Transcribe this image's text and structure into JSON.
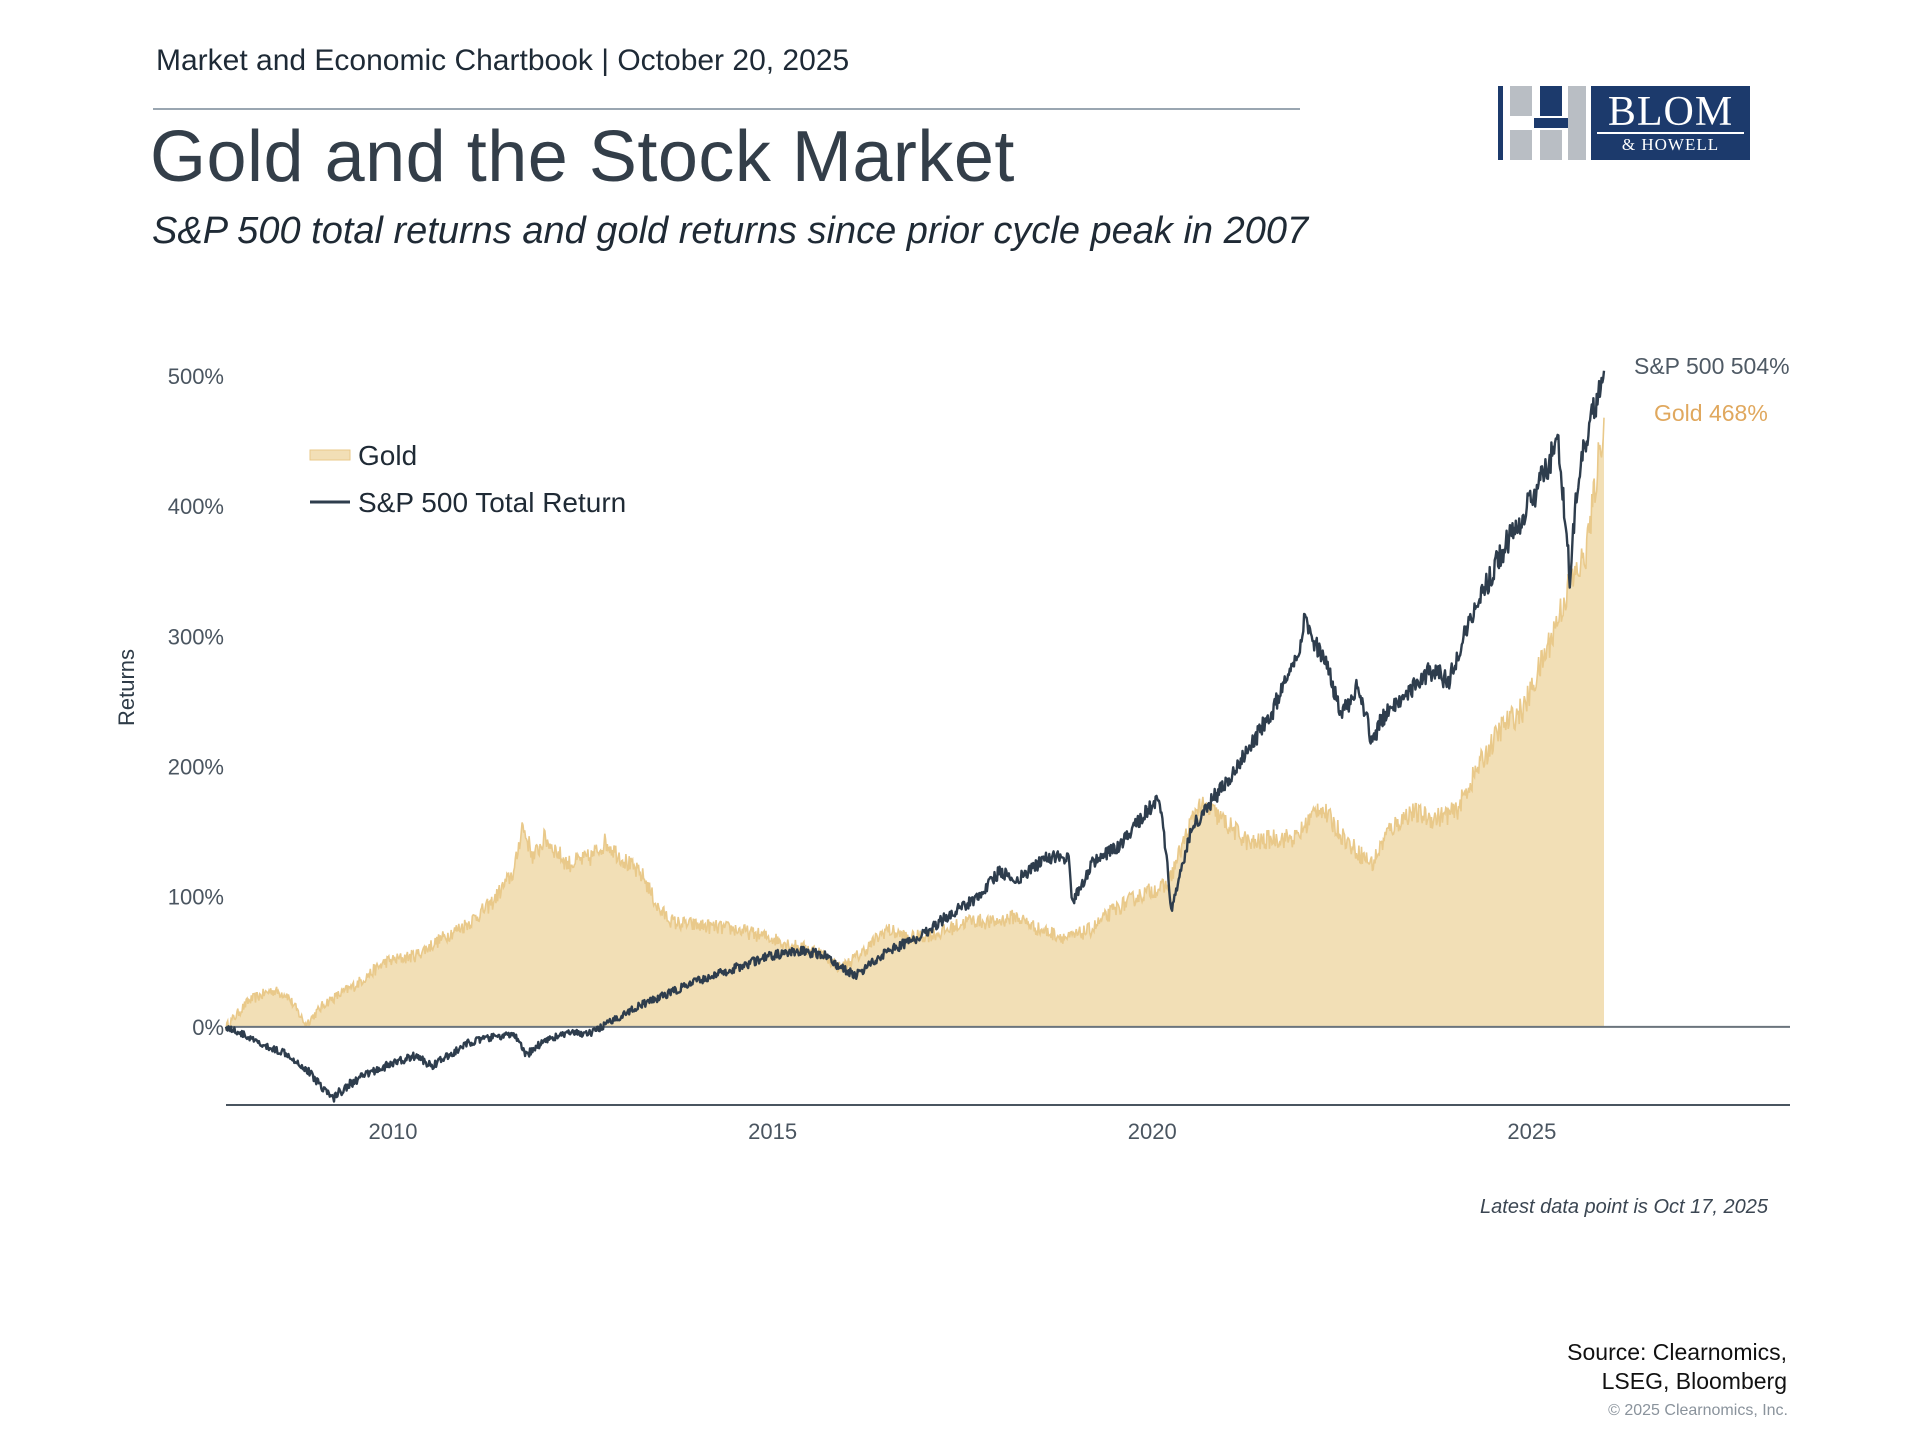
{
  "header": {
    "chartbook": "Market and Economic Chartbook | October 20, 2025",
    "title": "Gold and the Stock Market",
    "subtitle": "S&P 500 total returns and gold returns since prior cycle peak in 2007"
  },
  "logo": {
    "name": "BLOM",
    "sub": "& HOWELL",
    "color": "#1c3a6c"
  },
  "chart_data": {
    "type": "area",
    "ylabel": "Returns",
    "xlabel": "",
    "ylim": [
      -60,
      520
    ],
    "xlim": [
      2007.8,
      2028.4
    ],
    "y_ticks": [
      0,
      100,
      200,
      300,
      400,
      500
    ],
    "y_tick_labels": [
      "0%",
      "100%",
      "200%",
      "300%",
      "400%",
      "500%"
    ],
    "x_ticks": [
      2010,
      2015,
      2020,
      2025
    ],
    "x_tick_labels": [
      "2010",
      "2015",
      "2020",
      "2025"
    ],
    "legend_placement": "top-left",
    "grid": false,
    "series": [
      {
        "name": "Gold",
        "style": "area",
        "color": "#f2dfb6",
        "stroke": "#e9c98a",
        "end_label": "Gold 468%",
        "end_label_color": "#e0a85e",
        "points": [
          [
            2007.8,
            0
          ],
          [
            2008.1,
            20
          ],
          [
            2008.4,
            28
          ],
          [
            2008.6,
            25
          ],
          [
            2008.85,
            2
          ],
          [
            2009.1,
            18
          ],
          [
            2009.5,
            32
          ],
          [
            2009.9,
            50
          ],
          [
            2010.3,
            55
          ],
          [
            2010.7,
            70
          ],
          [
            2011.0,
            80
          ],
          [
            2011.3,
            95
          ],
          [
            2011.6,
            120
          ],
          [
            2011.7,
            155
          ],
          [
            2011.85,
            130
          ],
          [
            2012.0,
            145
          ],
          [
            2012.3,
            125
          ],
          [
            2012.6,
            130
          ],
          [
            2012.8,
            142
          ],
          [
            2013.1,
            125
          ],
          [
            2013.3,
            115
          ],
          [
            2013.5,
            90
          ],
          [
            2013.7,
            80
          ],
          [
            2014.0,
            78
          ],
          [
            2014.5,
            75
          ],
          [
            2015.0,
            68
          ],
          [
            2015.3,
            62
          ],
          [
            2015.6,
            58
          ],
          [
            2015.9,
            45
          ],
          [
            2016.2,
            58
          ],
          [
            2016.5,
            75
          ],
          [
            2016.8,
            68
          ],
          [
            2017.2,
            72
          ],
          [
            2017.6,
            82
          ],
          [
            2017.9,
            80
          ],
          [
            2018.2,
            85
          ],
          [
            2018.5,
            75
          ],
          [
            2018.9,
            68
          ],
          [
            2019.2,
            75
          ],
          [
            2019.5,
            90
          ],
          [
            2019.8,
            100
          ],
          [
            2020.0,
            105
          ],
          [
            2020.2,
            108
          ],
          [
            2020.4,
            140
          ],
          [
            2020.6,
            170
          ],
          [
            2020.8,
            165
          ],
          [
            2021.0,
            155
          ],
          [
            2021.3,
            140
          ],
          [
            2021.6,
            145
          ],
          [
            2021.9,
            145
          ],
          [
            2022.2,
            170
          ],
          [
            2022.4,
            155
          ],
          [
            2022.6,
            140
          ],
          [
            2022.9,
            125
          ],
          [
            2023.1,
            150
          ],
          [
            2023.4,
            165
          ],
          [
            2023.7,
            160
          ],
          [
            2024.0,
            165
          ],
          [
            2024.3,
            200
          ],
          [
            2024.6,
            230
          ],
          [
            2024.9,
            245
          ],
          [
            2025.2,
            290
          ],
          [
            2025.5,
            340
          ],
          [
            2025.7,
            360
          ],
          [
            2025.8,
            400
          ],
          [
            2025.95,
            468
          ]
        ]
      },
      {
        "name": "S&P 500 Total Return",
        "style": "line",
        "color": "#2e3d4d",
        "end_label": "S&P 500 504%",
        "end_label_color": "#4f5a65",
        "points": [
          [
            2007.8,
            0
          ],
          [
            2008.0,
            -5
          ],
          [
            2008.3,
            -15
          ],
          [
            2008.6,
            -20
          ],
          [
            2008.9,
            -35
          ],
          [
            2009.1,
            -48
          ],
          [
            2009.2,
            -55
          ],
          [
            2009.4,
            -45
          ],
          [
            2009.7,
            -35
          ],
          [
            2010.0,
            -28
          ],
          [
            2010.3,
            -22
          ],
          [
            2010.5,
            -30
          ],
          [
            2010.8,
            -20
          ],
          [
            2011.0,
            -12
          ],
          [
            2011.3,
            -8
          ],
          [
            2011.6,
            -6
          ],
          [
            2011.75,
            -22
          ],
          [
            2012.0,
            -10
          ],
          [
            2012.3,
            -5
          ],
          [
            2012.6,
            -5
          ],
          [
            2012.9,
            5
          ],
          [
            2013.2,
            15
          ],
          [
            2013.6,
            25
          ],
          [
            2014.0,
            35
          ],
          [
            2014.5,
            45
          ],
          [
            2015.0,
            55
          ],
          [
            2015.4,
            58
          ],
          [
            2015.7,
            55
          ],
          [
            2015.9,
            45
          ],
          [
            2016.1,
            40
          ],
          [
            2016.5,
            58
          ],
          [
            2016.9,
            68
          ],
          [
            2017.3,
            85
          ],
          [
            2017.7,
            100
          ],
          [
            2018.0,
            120
          ],
          [
            2018.2,
            112
          ],
          [
            2018.6,
            130
          ],
          [
            2018.9,
            130
          ],
          [
            2018.95,
            95
          ],
          [
            2019.2,
            125
          ],
          [
            2019.6,
            140
          ],
          [
            2019.9,
            165
          ],
          [
            2020.1,
            175
          ],
          [
            2020.2,
            125
          ],
          [
            2020.25,
            88
          ],
          [
            2020.5,
            150
          ],
          [
            2020.8,
            175
          ],
          [
            2021.0,
            190
          ],
          [
            2021.3,
            215
          ],
          [
            2021.6,
            245
          ],
          [
            2021.9,
            280
          ],
          [
            2022.0,
            310
          ],
          [
            2022.3,
            275
          ],
          [
            2022.5,
            240
          ],
          [
            2022.7,
            260
          ],
          [
            2022.9,
            220
          ],
          [
            2023.1,
            245
          ],
          [
            2023.4,
            260
          ],
          [
            2023.7,
            275
          ],
          [
            2023.9,
            265
          ],
          [
            2024.1,
            300
          ],
          [
            2024.4,
            340
          ],
          [
            2024.7,
            375
          ],
          [
            2025.0,
            405
          ],
          [
            2025.2,
            430
          ],
          [
            2025.35,
            450
          ],
          [
            2025.5,
            345
          ],
          [
            2025.6,
            420
          ],
          [
            2025.8,
            470
          ],
          [
            2025.95,
            504
          ]
        ]
      }
    ],
    "annotation": "Latest data point is Oct 17, 2025"
  },
  "footer": {
    "source_line1": "Source: Clearnomics,",
    "source_line2": "LSEG, Bloomberg",
    "copyright": "© 2025 Clearnomics, Inc."
  }
}
